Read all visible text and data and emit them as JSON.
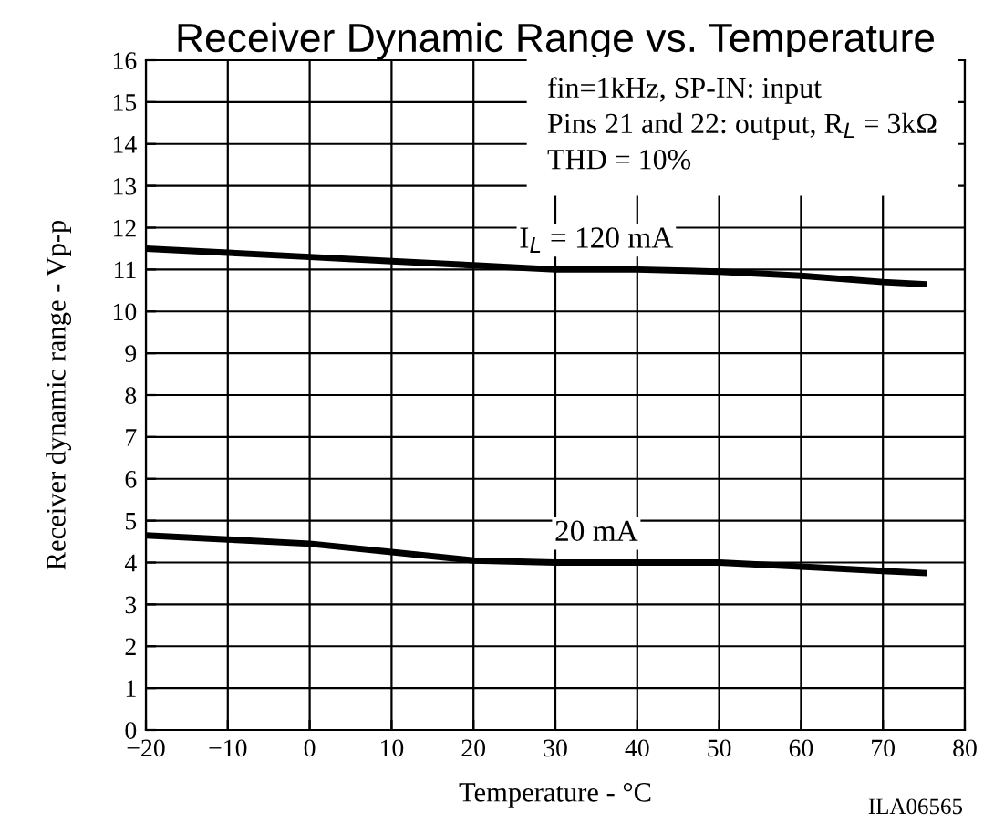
{
  "chart_data": {
    "type": "line",
    "title": "Receiver Dynamic Range vs. Temperature",
    "xlabel": "Temperature - °C",
    "ylabel": "Receiver dynamic range - Vp-p",
    "x": [
      -20,
      -10,
      0,
      10,
      20,
      30,
      40,
      50,
      60,
      70,
      75
    ],
    "series": [
      {
        "color": "#000000",
        "values": [
          11.5,
          11.4,
          11.3,
          11.2,
          11.1,
          11.0,
          11.0,
          10.95,
          10.85,
          10.7,
          10.65
        ]
      },
      {
        "color": "#000000",
        "values": [
          4.65,
          4.55,
          4.45,
          4.25,
          4.05,
          4.0,
          4.0,
          4.0,
          3.9,
          3.8,
          3.75
        ]
      }
    ],
    "xlim": [
      -20,
      80
    ],
    "xticks": [
      {
        "value": -20,
        "label": "−20"
      },
      {
        "value": -10,
        "label": "−10"
      },
      0,
      10,
      20,
      30,
      40,
      50,
      60,
      70,
      80
    ],
    "ylim": [
      0,
      16
    ],
    "yticks": [
      0,
      1,
      2,
      3,
      4,
      5,
      6,
      7,
      8,
      9,
      10,
      11,
      12,
      13,
      14,
      15,
      16
    ],
    "grid": true,
    "marker": "none",
    "line_style": "solid",
    "annotations": [
      "fin=1kHz, SP-IN: input",
      "Pins 21 and 22: output, R$_{L}$ = 3kΩ",
      "THD = 10%",
      {
        "text": "I$_{L}$ = 120 mA",
        "x": 35,
        "y": 11.0
      },
      {
        "text": "20 mA",
        "x": 35,
        "y": 4.0
      },
      "ILA06565"
    ]
  }
}
